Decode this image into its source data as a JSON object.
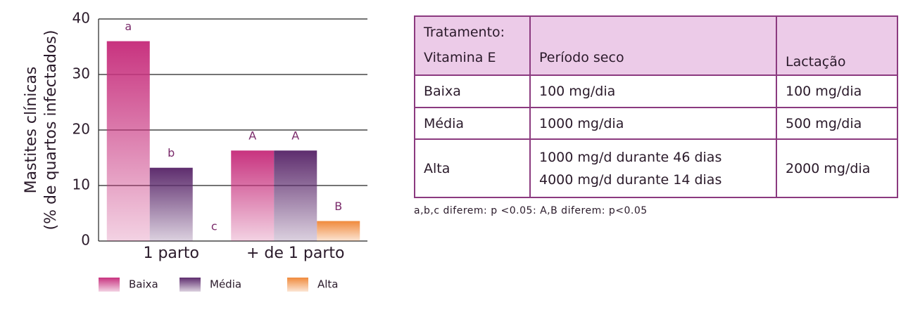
{
  "chart_data": {
    "type": "bar",
    "y_label": [
      "Mastites clínicas",
      "(% de quartos infectados)"
    ],
    "categories": [
      "1 parto",
      "+ de 1 parto"
    ],
    "series": [
      {
        "name": "Baixa",
        "color": "#c8337f",
        "values": [
          36,
          16.3
        ],
        "letters": [
          "a",
          "A"
        ]
      },
      {
        "name": "Média",
        "color": "#5e2d6e",
        "values": [
          13.2,
          16.3
        ],
        "letters": [
          "b",
          "A"
        ]
      },
      {
        "name": "Alta",
        "color": "#f08a3c",
        "values": [
          0,
          3.6
        ],
        "letters": [
          "c",
          "B"
        ]
      }
    ],
    "ylim": [
      0,
      40
    ],
    "yticks": [
      0,
      10,
      20,
      30,
      40
    ],
    "grid": true
  },
  "table": {
    "header": [
      [
        "Tratamento:",
        "Vitamina E"
      ],
      "Período seco",
      "Lactação"
    ],
    "rows": [
      [
        "Baixa",
        [
          "100 mg/dia"
        ],
        "100 mg/dia"
      ],
      [
        "Média",
        [
          "1000 mg/dia"
        ],
        "500 mg/dia"
      ],
      [
        "Alta",
        [
          "1000 mg/d durante 46 dias",
          "4000 mg/d durante 14 dias"
        ],
        "2000 mg/dia"
      ]
    ],
    "note": "a,b,c diferem: p <0.05: A,B diferem: p<0.05"
  }
}
